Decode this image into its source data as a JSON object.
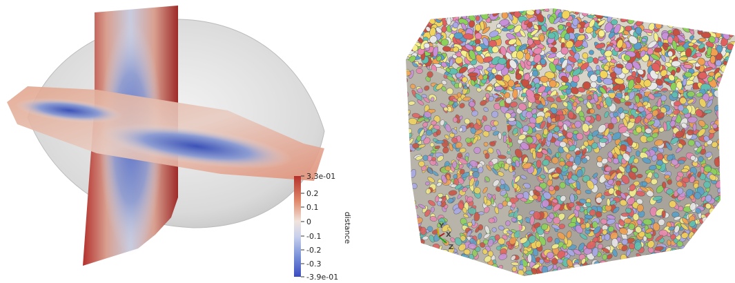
{
  "left_view": {
    "colorbar": {
      "title": "distance",
      "max_label": "3.3e-01",
      "min_label": "-3.9e-01",
      "ticks": [
        "0.2",
        "0.1",
        "0",
        "-0.1",
        "-0.2",
        "-0.3"
      ],
      "colors": {
        "max": "#b4302c",
        "mid": "#f0e4dc",
        "min": "#3b4cc0"
      }
    }
  },
  "right_view": {
    "orientation_axes": {
      "y_label": "Y",
      "x_label": "X",
      "z_label": "Z",
      "colors": {
        "y": "#c8b400",
        "x": "#b02020",
        "z": "#20a020"
      }
    },
    "particle_colors": [
      "#e06060",
      "#5aa0c8",
      "#f2d45c",
      "#8cd25a",
      "#c890d8",
      "#f0a050",
      "#e8e8e8",
      "#60c0b0",
      "#e888b0",
      "#f5f08c",
      "#a8a8e8",
      "#c85040"
    ]
  }
}
